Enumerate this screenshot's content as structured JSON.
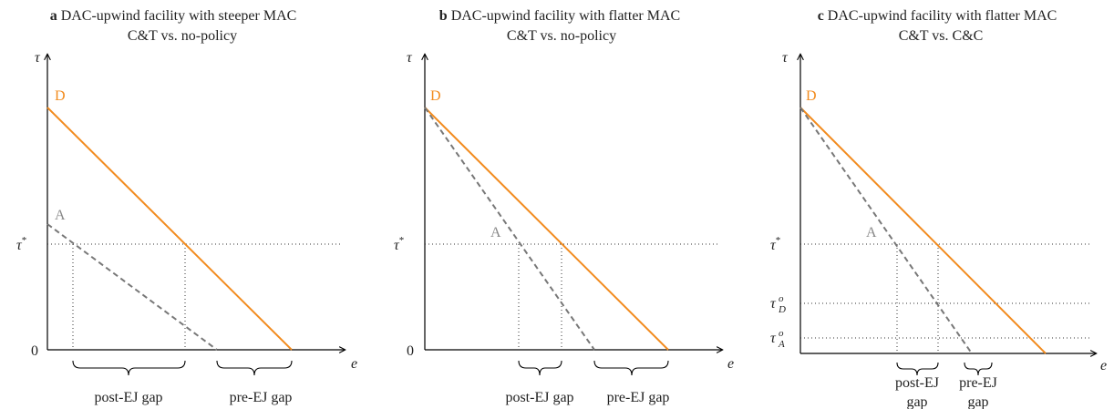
{
  "panels": [
    {
      "letter": "a",
      "title": "DAC-upwind facility with steeper MAC",
      "subtitle": "C&T vs. no-policy",
      "y_axis": "τ",
      "x_axis": "e",
      "origin": "0",
      "tau_star": {
        "base": "τ",
        "sup": "*"
      },
      "curve_d": "D",
      "curve_a": "A",
      "gaps": [
        {
          "lines": [
            "post-EJ gap"
          ]
        },
        {
          "lines": [
            "pre-EJ gap"
          ]
        }
      ]
    },
    {
      "letter": "b",
      "title": "DAC-upwind facility with flatter MAC",
      "subtitle": "C&T vs. no-policy",
      "y_axis": "τ",
      "x_axis": "e",
      "origin": "0",
      "tau_star": {
        "base": "τ",
        "sup": "*"
      },
      "curve_d": "D",
      "curve_a": "A",
      "gaps": [
        {
          "lines": [
            "post-EJ gap"
          ]
        },
        {
          "lines": [
            "pre-EJ gap"
          ]
        }
      ]
    },
    {
      "letter": "c",
      "title": "DAC-upwind facility with flatter MAC",
      "subtitle": "C&T vs. C&C",
      "y_axis": "τ",
      "x_axis": "e",
      "tau_star": {
        "base": "τ",
        "sup": "*"
      },
      "tau_d": {
        "base": "τ",
        "sup": "o",
        "sub": "D"
      },
      "tau_a": {
        "base": "τ",
        "sup": "o",
        "sub": "A"
      },
      "curve_d": "D",
      "curve_a": "A",
      "gaps": [
        {
          "lines": [
            "post-EJ",
            "gap"
          ]
        },
        {
          "lines": [
            "pre-EJ",
            "gap"
          ]
        }
      ]
    }
  ]
}
